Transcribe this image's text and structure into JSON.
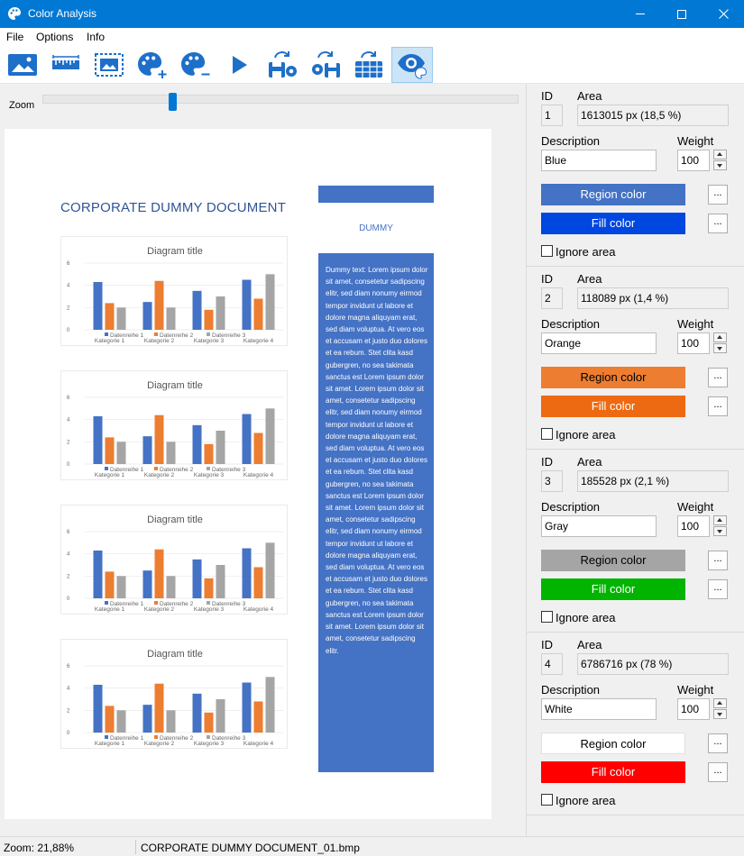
{
  "window": {
    "title": "Color Analysis"
  },
  "menu": [
    "File",
    "Options",
    "Info"
  ],
  "toolbar": [
    {
      "icon": "image-icon",
      "name": "open-image-button"
    },
    {
      "icon": "ruler-icon",
      "name": "measure-button"
    },
    {
      "icon": "image-select-icon",
      "name": "select-region-button"
    },
    {
      "icon": "palette-add-icon",
      "name": "add-color-button"
    },
    {
      "icon": "palette-remove-icon",
      "name": "remove-color-button"
    },
    {
      "icon": "play-icon",
      "name": "run-analysis-button"
    },
    {
      "icon": "save-settings-icon",
      "name": "save-settings-button"
    },
    {
      "icon": "save-config-icon",
      "name": "save-config-button"
    },
    {
      "icon": "save-grid-icon",
      "name": "save-grid-button"
    },
    {
      "icon": "eye-palette-icon",
      "name": "preview-button"
    }
  ],
  "zoom": {
    "label": "Zoom",
    "value": 0.27
  },
  "document": {
    "title": "CORPORATE DUMMY DOCUMENT",
    "side_heading": "DUMMY",
    "side_text": "Dummy text: Lorem ipsum dolor sit amet, consetetur sadipscing elitr, sed diam nonumy eirmod tempor invidunt ut labore et dolore magna aliquyam erat, sed diam voluptua. At vero eos et accusam et justo duo dolores et ea rebum. Stet clita kasd gubergren, no sea takimata sanctus est Lorem ipsum dolor sit amet. Lorem ipsum dolor sit amet, consetetur sadipscing elitr, sed diam nonumy eirmod tempor invidunt ut labore et dolore magna aliquyam erat, sed diam voluptua. At vero eos et accusam et justo duo dolores et ea rebum. Stet clita kasd gubergren, no sea takimata sanctus est Lorem ipsum dolor sit amet. Lorem ipsum dolor sit amet, consetetur sadipscing elitr, sed diam nonumy eirmod tempor invidunt ut labore et dolore magna aliquyam erat, sed diam voluptua. At vero eos et accusam et justo duo dolores et ea rebum. Stet clita kasd gubergren, no sea takimata sanctus est Lorem ipsum dolor sit amet. Lorem ipsum dolor sit amet, consetetur sadipscing elitr."
  },
  "chart_data": {
    "type": "bar",
    "title": "Diagram title",
    "categories": [
      "Kategorie 1",
      "Kategorie 2",
      "Kategorie 3",
      "Kategorie 4"
    ],
    "series": [
      {
        "name": "Datenreihe 1",
        "values": [
          4.3,
          2.5,
          3.5,
          4.5
        ],
        "color": "#4472c4"
      },
      {
        "name": "Datenreihe 2",
        "values": [
          2.4,
          4.4,
          1.8,
          2.8
        ],
        "color": "#ed7d31"
      },
      {
        "name": "Datenreihe 3",
        "values": [
          2,
          2,
          3,
          5
        ],
        "color": "#a5a5a5"
      }
    ],
    "yticks": [
      "0",
      "2",
      "4",
      "6"
    ],
    "ylim": [
      0,
      6
    ],
    "grid": true,
    "legend": "bottom",
    "count": 4
  },
  "labels": {
    "id": "ID",
    "area": "Area",
    "description": "Description",
    "weight": "Weight",
    "region_color": "Region color",
    "fill_color": "Fill color",
    "more": "...",
    "ignore": "Ignore area"
  },
  "regions": [
    {
      "id": "1",
      "area": "1613015 px (18,5 %)",
      "description": "Blue",
      "weight": "100",
      "region_color": "#4472c4",
      "fill_color": "#0046e0",
      "region_text": "#ffffff",
      "fill_text": "#ffffff",
      "ignore": false
    },
    {
      "id": "2",
      "area": "118089 px (1,4 %)",
      "description": "Orange",
      "weight": "100",
      "region_color": "#ed7d31",
      "fill_color": "#ee6a12",
      "region_text": "#000000",
      "fill_text": "#ffffff",
      "ignore": false
    },
    {
      "id": "3",
      "area": "185528 px (2,1 %)",
      "description": "Gray",
      "weight": "100",
      "region_color": "#a5a5a5",
      "fill_color": "#00b400",
      "region_text": "#000000",
      "fill_text": "#ffffff",
      "ignore": false
    },
    {
      "id": "4",
      "area": "6786716 px (78 %)",
      "description": "White",
      "weight": "100",
      "region_color": "#ffffff",
      "fill_color": "#ff0000",
      "region_text": "#000000",
      "fill_text": "#ffffff",
      "ignore": false
    }
  ],
  "status": {
    "zoom": "Zoom: 21,88%",
    "file": "CORPORATE DUMMY DOCUMENT_01.bmp"
  }
}
